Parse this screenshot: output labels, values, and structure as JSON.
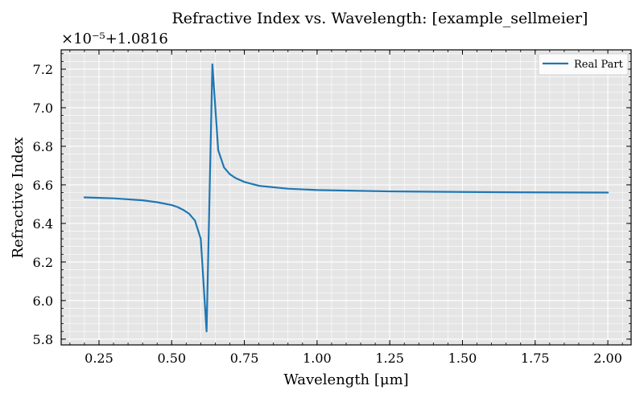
{
  "chart_data": {
    "type": "line",
    "title": "Refractive Index vs. Wavelength: [example_sellmeier]",
    "xlabel": "Wavelength [μm]",
    "ylabel": "Refractive Index",
    "offset_text": "×10⁻⁵+1.0816",
    "xlim": [
      0.12,
      2.08
    ],
    "ylim": [
      5.77,
      7.3
    ],
    "xticks": [
      0.25,
      0.5,
      0.75,
      1.0,
      1.25,
      1.5,
      1.75,
      2.0
    ],
    "xtick_labels": [
      "0.25",
      "0.50",
      "0.75",
      "1.00",
      "1.25",
      "1.50",
      "1.75",
      "2.00"
    ],
    "yticks": [
      5.8,
      6.0,
      6.2,
      6.4,
      6.6,
      6.8,
      7.0,
      7.2
    ],
    "ytick_labels": [
      "5.8",
      "6.0",
      "6.2",
      "6.4",
      "6.6",
      "6.8",
      "7.0",
      "7.2"
    ],
    "grid": true,
    "legend_position": "top-right",
    "colors": {
      "line": "#1f77b4",
      "plot_bg": "#e5e5e5",
      "grid": "#ffffff"
    },
    "series": [
      {
        "name": "Real Part",
        "x": [
          0.2,
          0.3,
          0.4,
          0.45,
          0.5,
          0.52,
          0.54,
          0.56,
          0.58,
          0.6,
          0.62,
          0.64,
          0.66,
          0.68,
          0.7,
          0.72,
          0.75,
          0.8,
          0.9,
          1.0,
          1.25,
          1.5,
          1.75,
          2.0
        ],
        "y": [
          6.535,
          6.53,
          6.52,
          6.51,
          6.495,
          6.485,
          6.47,
          6.45,
          6.415,
          6.32,
          5.84,
          7.225,
          6.78,
          6.69,
          6.655,
          6.635,
          6.615,
          6.595,
          6.58,
          6.573,
          6.566,
          6.563,
          6.561,
          6.56
        ]
      }
    ]
  }
}
